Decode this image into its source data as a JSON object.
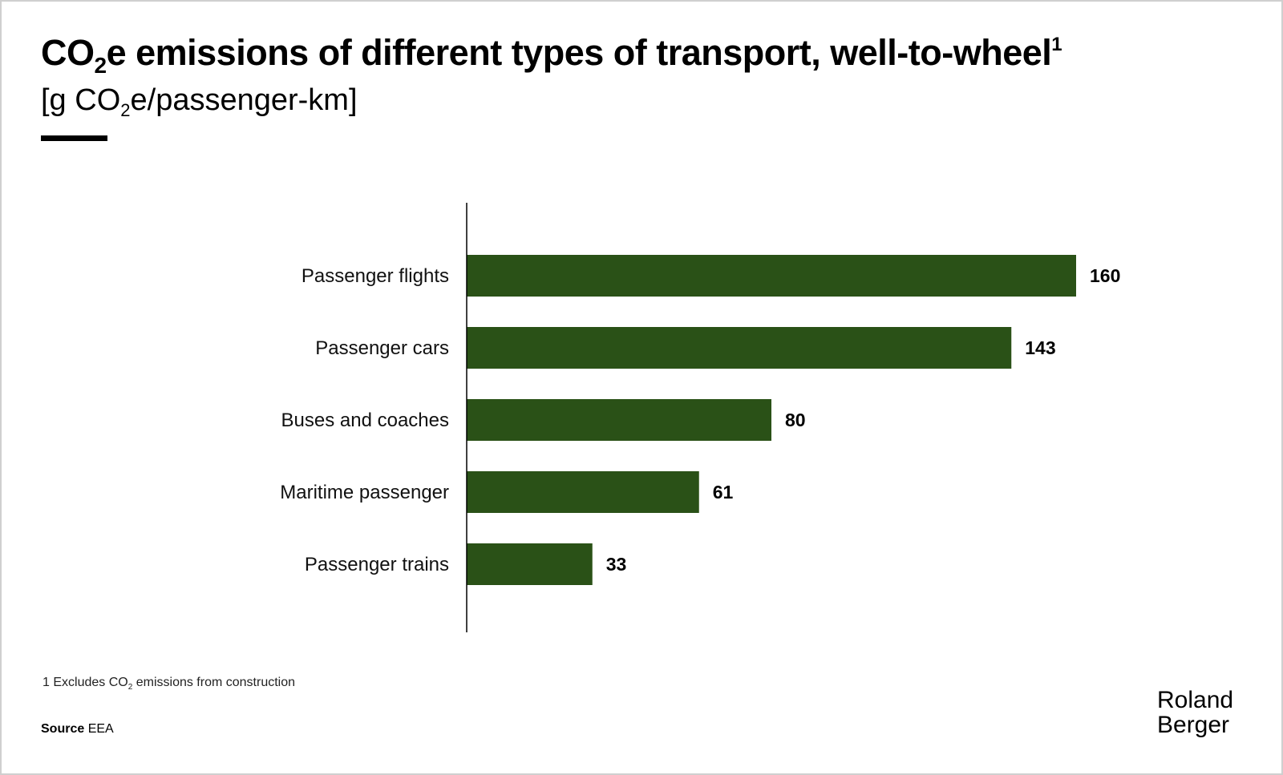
{
  "header": {
    "title_pre": "CO",
    "title_sub": "2",
    "title_post": "e emissions of different types of transport, well-to-wheel",
    "title_sup": "1",
    "subtitle_pre": "[g CO",
    "subtitle_sub": "2",
    "subtitle_post": "e/passenger-km]"
  },
  "chart_data": {
    "type": "bar",
    "orientation": "horizontal",
    "title": "CO2e emissions of different types of transport, well-to-wheel",
    "xlabel": "",
    "ylabel": "",
    "unit": "[g CO2e/passenger-km]",
    "categories": [
      "Passenger flights",
      "Passenger cars",
      "Buses and coaches",
      "Maritime passenger",
      "Passenger trains"
    ],
    "values": [
      160,
      143,
      80,
      61,
      33
    ],
    "xlim": [
      0,
      160
    ],
    "grid": false,
    "bar_color": "#2a5117"
  },
  "footer": {
    "footnote_pre": "1 Excludes CO",
    "footnote_sub": "2",
    "footnote_post": " emissions from construction",
    "source_label": "Source",
    "source_value": "EEA",
    "logo_line1": "Roland",
    "logo_line2": "Berger"
  }
}
